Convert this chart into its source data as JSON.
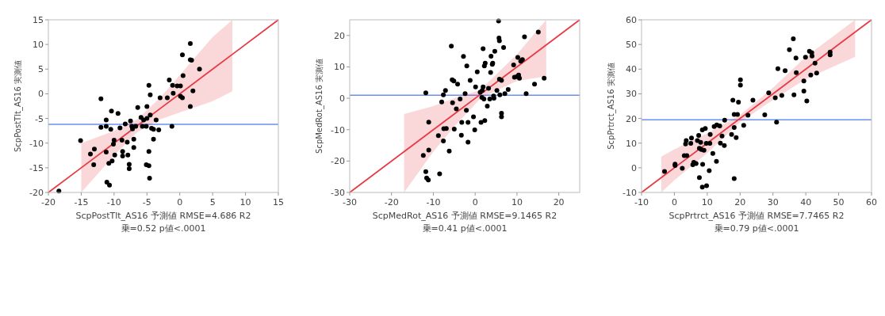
{
  "chart_data": [
    {
      "type": "scatter",
      "xlabel": "ScpPostTlt_AS16 予測値 RMSE=4.686 R2\n乗=0.52 p値<.0001",
      "ylabel": "ScpPostTlt_AS16 実測値",
      "xlim": [
        -20,
        15
      ],
      "ylim": [
        -20,
        15
      ],
      "xticks": [
        -20,
        -15,
        -10,
        -5,
        0,
        5,
        10,
        15
      ],
      "yticks": [
        -20,
        -15,
        -10,
        -5,
        0,
        5,
        10,
        15
      ],
      "grid": false,
      "ref_lines": [
        {
          "axis": "y",
          "value": -6.2,
          "color": "#6b8ff0"
        }
      ],
      "series": [
        {
          "type": "line",
          "color": "#e83a44",
          "x": [
            -20,
            -15,
            -10,
            -6.5,
            -3,
            0,
            5,
            8,
            15
          ],
          "values": [
            -20,
            -15,
            -10,
            -6.5,
            -3,
            0,
            5,
            8,
            15
          ],
          "upper": [
            null,
            -10,
            -7.5,
            -5.2,
            -0.8,
            3.8,
            11.5,
            15,
            null
          ],
          "lower": [
            null,
            -20,
            -12.5,
            -7.8,
            -5.2,
            -3.8,
            -1.5,
            0.5,
            null
          ]
        },
        {
          "type": "scatter",
          "marker": "circle",
          "color": "#000000",
          "x": [
            -18.4,
            -15.1,
            -13.6,
            -13,
            -13.1,
            -12,
            -12,
            -11.2,
            -11.2,
            -11.2,
            -11.1,
            -10.7,
            -10.8,
            -10.5,
            -10.4,
            -10.3,
            -10.1,
            -10,
            -9.9,
            -9.4,
            -9.1,
            -8.8,
            -8.7,
            -8.7,
            -8.3,
            -8,
            -7.9,
            -7.7,
            -7.7,
            -7.5,
            -7.3,
            -7.2,
            -7,
            -7,
            -6.7,
            -6.4,
            -5.9,
            -5.7,
            -5.5,
            -5.1,
            -5,
            -5,
            -5.1,
            -4.7,
            -4.7,
            -4.7,
            -4.6,
            -4.5,
            -4.5,
            -4.3,
            -4,
            -4,
            -3.6,
            -3.2,
            -3,
            -1.9,
            -1.6,
            -1.2,
            -1.1,
            -1,
            -0.4,
            0.1,
            0.1,
            0.4,
            0.4,
            0.5,
            1.6,
            1.6,
            1.6,
            1.8,
            2,
            3
          ],
          "values": [
            -19.7,
            -9.5,
            -12.2,
            -11.2,
            -14.4,
            -1,
            -6.8,
            -5.3,
            -6.6,
            -11.8,
            -17.9,
            -18.5,
            -14.1,
            -7.2,
            -3.5,
            -13.6,
            -10.2,
            -9.4,
            -12.4,
            -4,
            -6.9,
            -9.4,
            -11.7,
            -12.6,
            -6.1,
            -9.8,
            -12.4,
            -14.3,
            -15.2,
            -5.5,
            -6.6,
            -7.1,
            -9.2,
            -10.9,
            -6.6,
            -2.8,
            -4.8,
            -6.6,
            -5.3,
            -6.6,
            -2.6,
            -5,
            -14.4,
            -14.6,
            1.7,
            -11.7,
            -17.1,
            -0.2,
            -4.3,
            -7,
            -7.2,
            -9.2,
            -5.3,
            -7.3,
            -0.8,
            -0.8,
            2.8,
            -6.6,
            1.7,
            0.1,
            1.6,
            1.6,
            -0.5,
            -0.8,
            7.9,
            3.7,
            -2.6,
            10.2,
            6.9,
            6.8,
            0.6,
            5
          ]
        }
      ]
    },
    {
      "type": "scatter",
      "xlabel": "ScpMedRot_AS16 予測値 RMSE=9.1465 R2\n乗=0.41 p値<.0001",
      "ylabel": "ScpMedRot_AS16 実測値",
      "xlim": [
        -30,
        25
      ],
      "ylim": [
        -30,
        25
      ],
      "xticks": [
        -30,
        -20,
        -10,
        0,
        10,
        20
      ],
      "yticks": [
        -30,
        -20,
        -10,
        0,
        10,
        20
      ],
      "grid": false,
      "ref_lines": [
        {
          "axis": "y",
          "value": 1,
          "color": "#6b8ff0"
        }
      ],
      "series": [
        {
          "type": "line",
          "color": "#e83a44",
          "x": [
            -30,
            -17,
            -10,
            -5,
            1,
            5,
            10,
            17,
            25
          ],
          "values": [
            -30,
            -17,
            -10,
            -5,
            1,
            5,
            10,
            17,
            25
          ],
          "upper": [
            null,
            -5,
            -2.5,
            0,
            2.5,
            7.5,
            14,
            25,
            null
          ],
          "lower": [
            null,
            -30,
            -17,
            -9,
            -0.5,
            2.5,
            5.5,
            7,
            null
          ]
        },
        {
          "type": "scatter",
          "marker": "circle",
          "color": "#000000",
          "x": [
            -12.4,
            -11.8,
            -11.8,
            -11.6,
            -11.2,
            -11.1,
            -11.1,
            -8.8,
            -8.5,
            -8,
            -7.6,
            -7.6,
            -7.5,
            -7.1,
            -6.9,
            -6.2,
            -5.7,
            -5.5,
            -5.4,
            -5.1,
            -5,
            -4.5,
            -4.2,
            -3.6,
            -3.3,
            -3.2,
            -2.8,
            -2.4,
            -2.1,
            -2,
            -1.7,
            -1.7,
            -1.2,
            -0.4,
            -0.1,
            0.1,
            0.5,
            1.2,
            1.4,
            1.7,
            1.6,
            1.9,
            1.9,
            2.1,
            2.2,
            2.3,
            2.4,
            2.9,
            3.2,
            3.5,
            3.7,
            3.8,
            4.1,
            4.2,
            4.4,
            4.5,
            4.7,
            5.2,
            5.6,
            5.7,
            5.8,
            5.8,
            5.9,
            6.3,
            6.3,
            6.3,
            6.8,
            7.1,
            7.9,
            9.2,
            9.4,
            10,
            10.2,
            10.4,
            10.6,
            10.9,
            11.3,
            11.8,
            12.2,
            14.2,
            15.1,
            16.5
          ],
          "values": [
            -18.2,
            1.7,
            -23.4,
            -25.4,
            -26,
            -16.5,
            -7.6,
            -11.9,
            -24.1,
            -1.2,
            1.1,
            -13.6,
            -9.7,
            2.5,
            -9.6,
            -16.8,
            16.6,
            5.9,
            -1.4,
            5.5,
            -9.8,
            -3.4,
            4.5,
            -0.2,
            -11.8,
            -7.7,
            13.3,
            1.5,
            -3.8,
            10.3,
            -14,
            -7.7,
            5.7,
            -5.9,
            -10.1,
            3.6,
            8.4,
            1.9,
            -7.7,
            2.5,
            0.3,
            15.8,
            3.6,
            -0.2,
            10.3,
            -7.1,
            11.2,
            -2.5,
            3.2,
            -0.2,
            8.2,
            13.4,
            10.8,
            11.2,
            0.7,
            0,
            15,
            2.5,
            24.6,
            19.2,
            18.3,
            6.1,
            1.1,
            -4.8,
            -5.9,
            5.7,
            16.2,
            1.5,
            2.8,
            10.6,
            6.7,
            6.9,
            13,
            7.4,
            6.4,
            11.8,
            12.3,
            19.6,
            1.5,
            4.5,
            21.1,
            6.4
          ]
        }
      ]
    },
    {
      "type": "scatter",
      "xlabel": "ScpPrtrct_AS16 予測値 RMSE=7.7465 R2\n乗=0.79 p値<.0001",
      "ylabel": "ScpPrtrct_AS16 実測値",
      "xlim": [
        -10,
        60
      ],
      "ylim": [
        -10,
        60
      ],
      "xticks": [
        -10,
        0,
        10,
        20,
        30,
        40,
        50,
        60
      ],
      "yticks": [
        -10,
        0,
        10,
        20,
        30,
        40,
        50,
        60
      ],
      "grid": false,
      "ref_lines": [
        {
          "axis": "y",
          "value": 19.5,
          "color": "#6b8ff0"
        }
      ],
      "series": [
        {
          "type": "line",
          "color": "#e83a44",
          "x": [
            -10,
            -4,
            0,
            10,
            20,
            30,
            40,
            55,
            60
          ],
          "values": [
            -10,
            -4,
            0,
            10,
            20,
            30,
            40,
            55,
            60
          ],
          "upper": [
            null,
            4.5,
            7.5,
            14,
            21.5,
            32.5,
            45,
            60,
            null
          ],
          "lower": [
            null,
            -10,
            -5,
            6,
            18.5,
            27.5,
            36,
            45,
            null
          ]
        },
        {
          "type": "scatter",
          "marker": "circle",
          "color": "#000000",
          "x": [
            -3,
            0.2,
            0.2,
            2.4,
            3,
            3.8,
            3.4,
            3.6,
            5,
            5.2,
            5.6,
            5.9,
            6.6,
            7,
            7.4,
            7.6,
            7.6,
            8,
            8.2,
            8.5,
            8.5,
            8.6,
            9,
            9.4,
            9.7,
            9.8,
            10.6,
            10.8,
            10.9,
            11.7,
            12.1,
            12.8,
            12.9,
            13.8,
            14,
            14.5,
            15.2,
            15.3,
            17.4,
            17.8,
            18.2,
            18.2,
            18.2,
            18.8,
            19.2,
            19.5,
            20.1,
            20.1,
            21.1,
            22.4,
            23.9,
            27.5,
            28.7,
            30.7,
            31.1,
            31.5,
            32.7,
            33.7,
            35,
            36.2,
            36.4,
            37,
            37.1,
            39.4,
            39.4,
            39.9,
            40.3,
            41.1,
            41.5,
            41.8,
            41.9,
            42.8,
            43.3,
            47.4,
            47.4
          ],
          "values": [
            -1.5,
            1.5,
            0.9,
            -0.2,
            4.9,
            4.9,
            9.7,
            11,
            9.9,
            12.1,
            1.2,
            2.2,
            1.7,
            11,
            13.1,
            7.9,
            -4,
            10.3,
            7.4,
            15.4,
            -7.8,
            1.4,
            7.1,
            15.9,
            9.9,
            -7.3,
            -1.2,
            9.9,
            13.5,
            5.8,
            16.7,
            2.6,
            17.4,
            17,
            10,
            12.9,
            9,
            19.3,
            13.5,
            27.4,
            -4.4,
            16.3,
            21.6,
            12.2,
            21.6,
            26.6,
            35.7,
            33.5,
            17.2,
            21.3,
            27.4,
            21.5,
            30.4,
            28.4,
            18.5,
            40.2,
            29.3,
            39.4,
            47.9,
            52.3,
            29.6,
            44.5,
            38.6,
            35.2,
            31.1,
            44.8,
            27.1,
            47.2,
            37.6,
            46.7,
            45.3,
            42.4,
            38.4,
            46.9,
            45.8
          ]
        }
      ]
    }
  ]
}
